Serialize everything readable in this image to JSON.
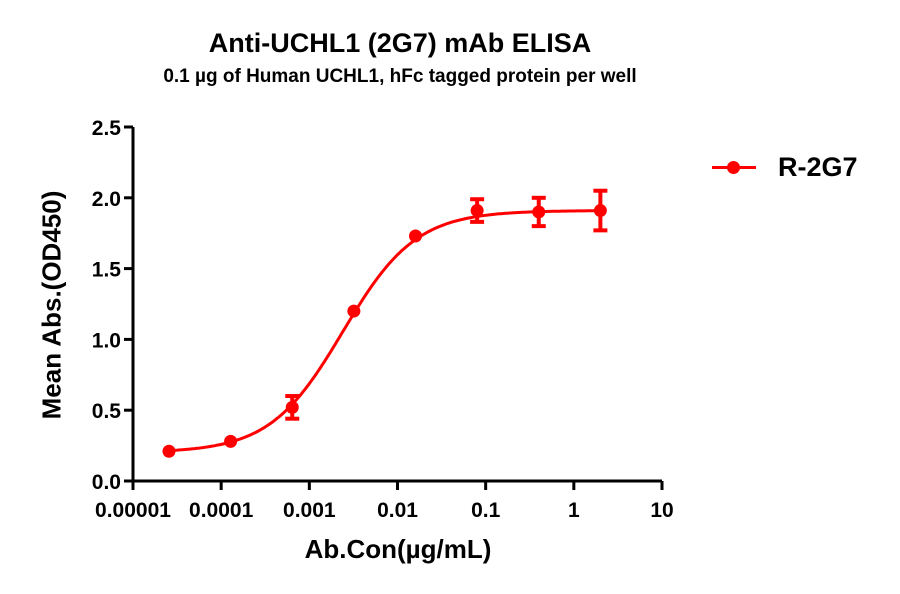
{
  "chart_data": {
    "type": "scatter",
    "title": "Anti-UCHL1 (2G7) mAb ELISA",
    "subtitle": "0.1 µg of Human UCHL1, hFc tagged protein per well",
    "xlabel": "Ab.Con(µg/mL)",
    "ylabel": "Mean Abs.(OD450)",
    "xscale": "log",
    "xlim": [
      1e-05,
      10
    ],
    "ylim": [
      0,
      2.5
    ],
    "xticks": [
      1e-05,
      0.0001,
      0.001,
      0.01,
      0.1,
      1,
      10
    ],
    "xtick_labels": [
      "0.00001",
      "0.0001",
      "0.001",
      "0.01",
      "0.1",
      "1",
      "10"
    ],
    "yticks": [
      0.0,
      0.5,
      1.0,
      1.5,
      2.0,
      2.5
    ],
    "ytick_labels": [
      "0.0",
      "0.5",
      "1.0",
      "1.5",
      "2.0",
      "2.5"
    ],
    "grid": false,
    "legend_position": "upper right, outside plot",
    "fit": "sigmoidal 4PL curve",
    "series": [
      {
        "name": "R-2G7",
        "color": "#ff0000",
        "x": [
          2.56e-05,
          0.000128,
          0.00064,
          0.0032,
          0.016,
          0.08,
          0.4,
          2
        ],
        "y": [
          0.21,
          0.28,
          0.52,
          1.2,
          1.73,
          1.91,
          1.9,
          1.91
        ],
        "error": [
          0.0,
          0.0,
          0.08,
          0.0,
          0.0,
          0.08,
          0.1,
          0.14
        ]
      }
    ]
  }
}
